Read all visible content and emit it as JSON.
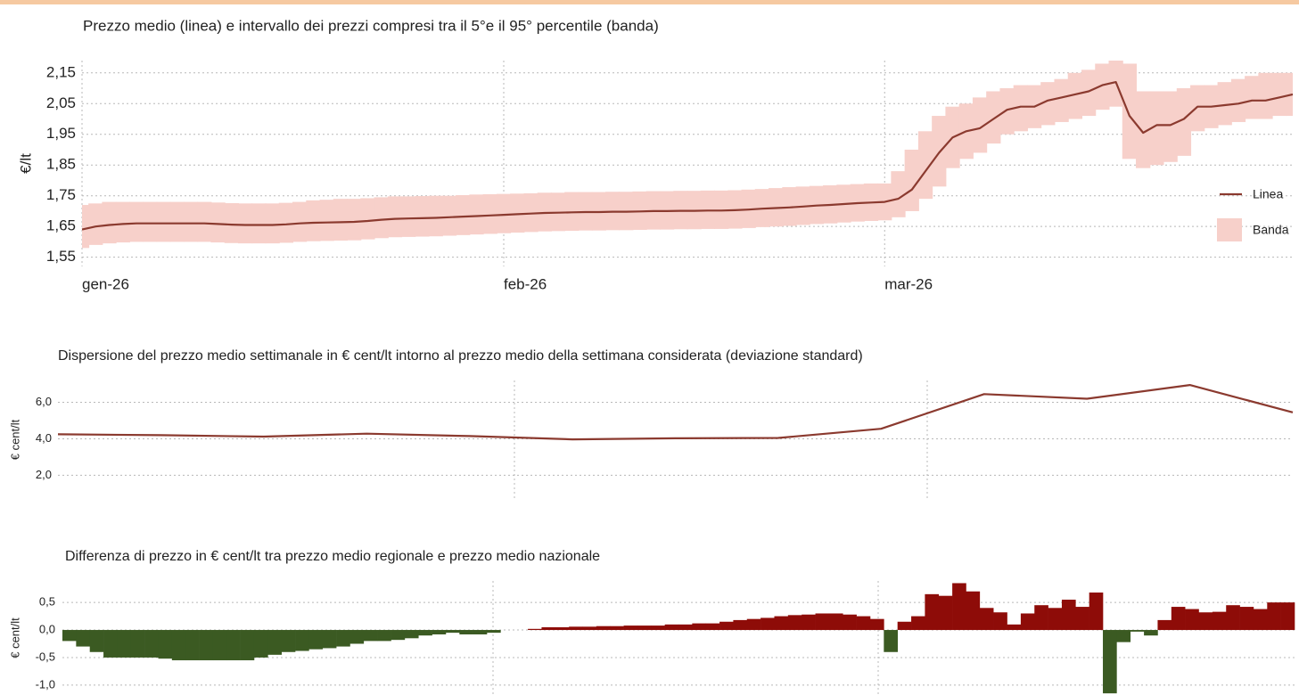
{
  "chart_data": [
    {
      "type": "line",
      "title": "Prezzo medio (linea) e intervallo dei prezzi compresi tra il 5°e il 95° percentile (banda)",
      "y_label": "€/lt",
      "categories": [
        "gen-26",
        null,
        null,
        null,
        null,
        null,
        null,
        null,
        null,
        null,
        null,
        null,
        null,
        null,
        null,
        null,
        null,
        null,
        null,
        null,
        null,
        null,
        null,
        null,
        null,
        null,
        null,
        null,
        null,
        null,
        null,
        "feb-26",
        null,
        null,
        null,
        null,
        null,
        null,
        null,
        null,
        null,
        null,
        null,
        null,
        null,
        null,
        null,
        null,
        null,
        null,
        null,
        null,
        null,
        null,
        null,
        null,
        null,
        null,
        null,
        "mar-26",
        null,
        null,
        null,
        null,
        null,
        null,
        null,
        null,
        null,
        null,
        null,
        null,
        null,
        null,
        null,
        null,
        null,
        null,
        null,
        null,
        null,
        null,
        null,
        null,
        null,
        null,
        null,
        null,
        null,
        null
      ],
      "series": [
        {
          "name": "Linea",
          "color": "#8b3a2f",
          "values": [
            1.64,
            1.65,
            1.655,
            1.658,
            1.66,
            1.66,
            1.66,
            1.66,
            1.66,
            1.66,
            1.658,
            1.656,
            1.655,
            1.655,
            1.655,
            1.657,
            1.66,
            1.662,
            1.663,
            1.664,
            1.665,
            1.668,
            1.672,
            1.675,
            1.676,
            1.677,
            1.678,
            1.68,
            1.682,
            1.684,
            1.686,
            1.688,
            1.69,
            1.692,
            1.694,
            1.695,
            1.696,
            1.697,
            1.697,
            1.698,
            1.698,
            1.699,
            1.7,
            1.7,
            1.701,
            1.701,
            1.702,
            1.702,
            1.703,
            1.705,
            1.708,
            1.71,
            1.712,
            1.715,
            1.718,
            1.72,
            1.723,
            1.726,
            1.728,
            1.73,
            1.74,
            1.77,
            1.83,
            1.89,
            1.94,
            1.96,
            1.97,
            2.0,
            2.03,
            2.04,
            2.04,
            2.06,
            2.07,
            2.08,
            2.09,
            2.11,
            2.12,
            2.01,
            1.955,
            1.98,
            1.98,
            2.0,
            2.04,
            2.04,
            2.045,
            2.05,
            2.06,
            2.06,
            2.07,
            2.08
          ]
        }
      ],
      "band": {
        "name": "Banda",
        "color": "#f7d0ca",
        "upper": [
          1.72,
          1.725,
          1.73,
          1.73,
          1.73,
          1.73,
          1.73,
          1.73,
          1.73,
          1.73,
          1.728,
          1.726,
          1.725,
          1.725,
          1.725,
          1.727,
          1.73,
          1.735,
          1.737,
          1.74,
          1.74,
          1.742,
          1.745,
          1.748,
          1.748,
          1.749,
          1.75,
          1.75,
          1.752,
          1.754,
          1.755,
          1.756,
          1.757,
          1.758,
          1.76,
          1.76,
          1.762,
          1.762,
          1.762,
          1.763,
          1.763,
          1.764,
          1.765,
          1.765,
          1.766,
          1.766,
          1.767,
          1.767,
          1.768,
          1.77,
          1.772,
          1.775,
          1.778,
          1.78,
          1.782,
          1.784,
          1.786,
          1.788,
          1.79,
          1.79,
          1.83,
          1.9,
          1.96,
          2.01,
          2.04,
          2.05,
          2.07,
          2.09,
          2.1,
          2.11,
          2.11,
          2.12,
          2.13,
          2.15,
          2.16,
          2.18,
          2.19,
          2.18,
          2.09,
          2.09,
          2.09,
          2.1,
          2.11,
          2.11,
          2.12,
          2.13,
          2.14,
          2.15,
          2.15,
          2.15
        ],
        "lower": [
          1.58,
          1.59,
          1.595,
          1.598,
          1.6,
          1.6,
          1.6,
          1.6,
          1.6,
          1.6,
          1.598,
          1.596,
          1.595,
          1.595,
          1.595,
          1.597,
          1.6,
          1.602,
          1.603,
          1.604,
          1.605,
          1.608,
          1.612,
          1.615,
          1.616,
          1.617,
          1.618,
          1.62,
          1.622,
          1.624,
          1.626,
          1.628,
          1.63,
          1.632,
          1.634,
          1.635,
          1.636,
          1.637,
          1.637,
          1.638,
          1.638,
          1.639,
          1.64,
          1.64,
          1.641,
          1.641,
          1.642,
          1.642,
          1.643,
          1.645,
          1.648,
          1.65,
          1.652,
          1.655,
          1.658,
          1.66,
          1.663,
          1.666,
          1.668,
          1.67,
          1.68,
          1.7,
          1.74,
          1.78,
          1.84,
          1.87,
          1.89,
          1.92,
          1.95,
          1.96,
          1.97,
          1.98,
          1.99,
          2.0,
          2.01,
          2.03,
          2.04,
          1.87,
          1.84,
          1.85,
          1.86,
          1.88,
          1.96,
          1.97,
          1.98,
          1.99,
          2.0,
          2.0,
          2.01,
          2.01
        ]
      },
      "ylim": [
        1.52,
        2.19
      ],
      "yticks": [
        {
          "value": 1.55,
          "label": "1,55"
        },
        {
          "value": 1.65,
          "label": "1,65"
        },
        {
          "value": 1.75,
          "label": "1,75"
        },
        {
          "value": 1.85,
          "label": "1,85"
        },
        {
          "value": 1.95,
          "label": "1,95"
        },
        {
          "value": 2.05,
          "label": "2,05"
        },
        {
          "value": 2.15,
          "label": "2,15"
        }
      ],
      "grid": true,
      "legend": "right"
    },
    {
      "type": "line",
      "title": "Dispersione del prezzo medio settimanale in € cent/lt intorno al prezzo medio della settimana considerata (deviazione standard)",
      "y_label": "€ cent/lt",
      "categories": [
        null,
        null,
        null,
        null,
        null,
        null,
        null,
        null,
        null,
        null,
        null,
        null,
        null
      ],
      "series": [
        {
          "color": "#8b3a2f",
          "values": [
            4.25,
            4.2,
            4.12,
            4.28,
            4.15,
            3.97,
            4.03,
            4.05,
            4.55,
            6.45,
            6.2,
            6.95,
            5.45
          ]
        }
      ],
      "ylim": [
        0.7,
        7.2
      ],
      "yticks": [
        {
          "value": 2,
          "label": "2,0"
        },
        {
          "value": 4,
          "label": "4,0"
        },
        {
          "value": 6,
          "label": "6,0"
        }
      ],
      "grid": true
    },
    {
      "type": "bar",
      "title": "Differenza di prezzo in € cent/lt tra prezzo medio regionale e prezzo medio nazionale",
      "y_label": "€ cent/lt",
      "categories": [
        null,
        null,
        null,
        null,
        null,
        null,
        null,
        null,
        null,
        null,
        null,
        null,
        null,
        null,
        null,
        null,
        null,
        null,
        null,
        null,
        null,
        null,
        null,
        null,
        null,
        null,
        null,
        null,
        null,
        null,
        null,
        null,
        null,
        null,
        null,
        null,
        null,
        null,
        null,
        null,
        null,
        null,
        null,
        null,
        null,
        null,
        null,
        null,
        null,
        null,
        null,
        null,
        null,
        null,
        null,
        null,
        null,
        null,
        null,
        null,
        null,
        null,
        null,
        null,
        null,
        null,
        null,
        null,
        null,
        null,
        null,
        null,
        null,
        null,
        null,
        null,
        null,
        null,
        null,
        null,
        null,
        null,
        null,
        null,
        null,
        null,
        null,
        null,
        null,
        null
      ],
      "values": [
        -0.2,
        -0.3,
        -0.4,
        -0.5,
        -0.5,
        -0.5,
        -0.5,
        -0.52,
        -0.55,
        -0.55,
        -0.55,
        -0.55,
        -0.55,
        -0.55,
        -0.5,
        -0.45,
        -0.4,
        -0.38,
        -0.35,
        -0.33,
        -0.3,
        -0.25,
        -0.2,
        -0.2,
        -0.18,
        -0.15,
        -0.1,
        -0.08,
        -0.05,
        -0.08,
        -0.08,
        -0.05,
        0,
        0,
        0.02,
        0.05,
        0.05,
        0.06,
        0.06,
        0.07,
        0.07,
        0.08,
        0.08,
        0.08,
        0.1,
        0.1,
        0.12,
        0.12,
        0.15,
        0.18,
        0.2,
        0.22,
        0.25,
        0.27,
        0.28,
        0.3,
        0.3,
        0.28,
        0.25,
        0.2,
        -0.4,
        0.15,
        0.25,
        0.65,
        0.62,
        0.85,
        0.7,
        0.4,
        0.32,
        0.1,
        0.3,
        0.45,
        0.4,
        0.55,
        0.42,
        0.68,
        -1.15,
        -0.22,
        -0.03,
        -0.1,
        0.18,
        0.42,
        0.38,
        0.32,
        0.33,
        0.45,
        0.42,
        0.38,
        0.5,
        0.5
      ],
      "positive_color": "#8e0c08",
      "negative_color": "#3b5a22",
      "ylim": [
        -1.18,
        0.89
      ],
      "yticks": [
        {
          "value": -1,
          "label": "-1,0"
        },
        {
          "value": -0.5,
          "label": "-0,5"
        },
        {
          "value": 0,
          "label": "0,0"
        },
        {
          "value": 0.5,
          "label": "0,5"
        }
      ],
      "grid": true
    }
  ]
}
